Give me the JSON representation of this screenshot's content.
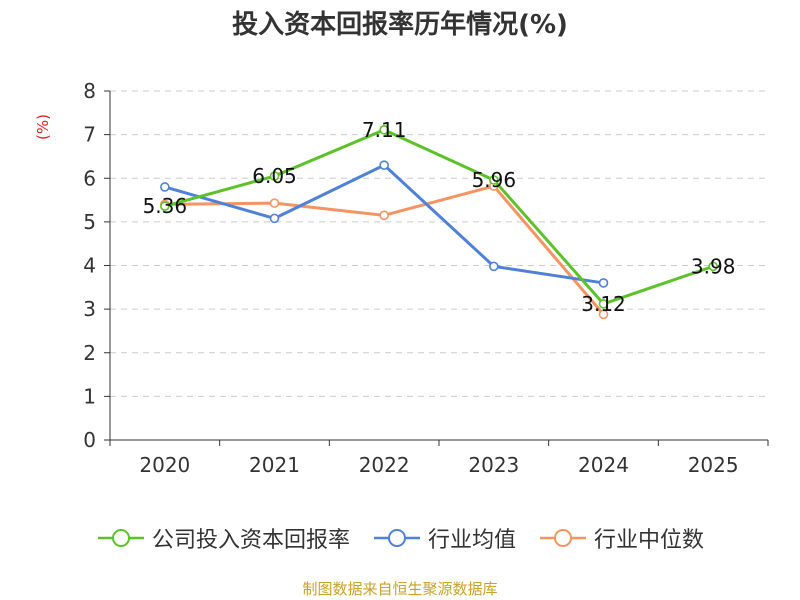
{
  "chart_data": {
    "type": "line",
    "title": "投入资本回报率历年情况(%)",
    "ylabel": "(%)",
    "xlabel": "",
    "categories": [
      "2020",
      "2021",
      "2022",
      "2023",
      "2024",
      "2025"
    ],
    "ylim": [
      0,
      8
    ],
    "yticks": [
      0,
      1,
      2,
      3,
      4,
      5,
      6,
      7,
      8
    ],
    "grid": true,
    "legend_position": "bottom",
    "series": [
      {
        "name": "公司投入资本回报率",
        "color": "#5cc22a",
        "values": [
          5.36,
          6.05,
          7.11,
          5.96,
          3.12,
          3.98
        ],
        "labels": [
          "5.36",
          "6.05",
          "7.11",
          "5.96",
          "3.12",
          "3.98"
        ]
      },
      {
        "name": "行业均值",
        "color": "#4f81d9",
        "values": [
          5.8,
          5.08,
          6.3,
          3.98,
          3.6,
          null
        ]
      },
      {
        "name": "行业中位数",
        "color": "#f59462",
        "values": [
          5.4,
          5.43,
          5.15,
          5.82,
          2.88,
          null
        ]
      }
    ]
  },
  "source": "制图数据来自恒生聚源数据库"
}
